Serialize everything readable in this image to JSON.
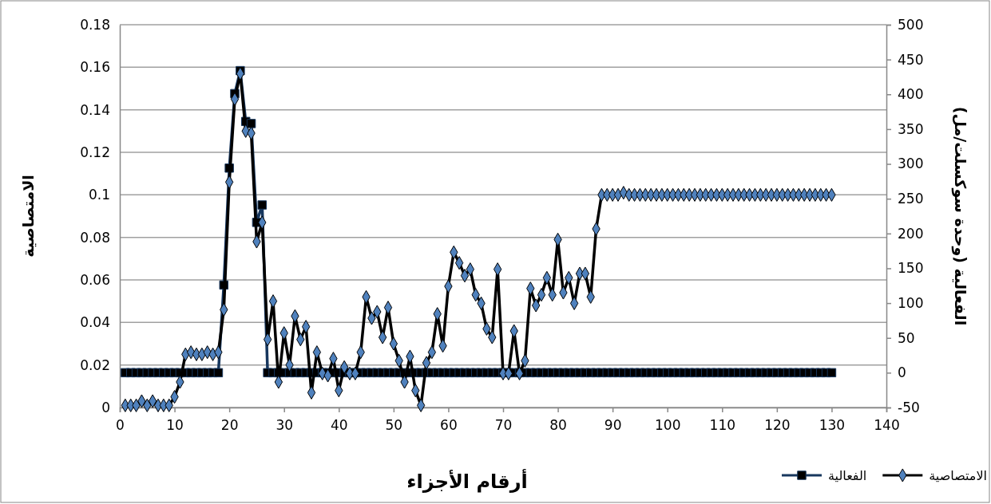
{
  "chart_data": {
    "type": "line",
    "xlabel": "أرقام الأجزاء",
    "ylabel": "الامتصاصية",
    "y2label": "الفعالية  (وحدة سوكسلت/مل)",
    "xlim": [
      0,
      140
    ],
    "xticks": [
      0,
      10,
      20,
      30,
      40,
      50,
      60,
      70,
      80,
      90,
      100,
      110,
      120,
      130,
      140
    ],
    "ylim": [
      0,
      0.18
    ],
    "yticks": [
      0,
      0.02,
      0.04,
      0.06,
      0.08,
      0.1,
      0.12,
      0.14,
      0.16,
      0.18
    ],
    "y2lim": [
      -50,
      500
    ],
    "y2ticks": [
      -50,
      0,
      50,
      100,
      150,
      200,
      250,
      300,
      350,
      400,
      450,
      500
    ],
    "grid": "y",
    "legend": "bottom right",
    "series": [
      {
        "name": "الامتصاصية",
        "color": "#000000",
        "marker": "diamond",
        "x": [
          1,
          2,
          3,
          4,
          5,
          6,
          7,
          8,
          9,
          10,
          11,
          12,
          13,
          14,
          15,
          16,
          17,
          18,
          19,
          20,
          21,
          22,
          23,
          24,
          25,
          26,
          27,
          28,
          29,
          30,
          31,
          32,
          33,
          34,
          35,
          36,
          37,
          38,
          39,
          40,
          41,
          42,
          43,
          44,
          45,
          46,
          47,
          48,
          49,
          50,
          51,
          52,
          53,
          54,
          55,
          56,
          57,
          58,
          59,
          60,
          61,
          62,
          63,
          64,
          65,
          66,
          67,
          68,
          69,
          70,
          71,
          72,
          73,
          74,
          75,
          76,
          77,
          78,
          79,
          80,
          81,
          82,
          83,
          84,
          85,
          86,
          87,
          88,
          89,
          90,
          91,
          92,
          93,
          94,
          95,
          96,
          97,
          98,
          99,
          100,
          101,
          102,
          103,
          104,
          105,
          106,
          107,
          108,
          109,
          110,
          111,
          112,
          113,
          114,
          115,
          116,
          117,
          118,
          119,
          120,
          121,
          122,
          123,
          124,
          125,
          126,
          127,
          128,
          129,
          130
        ],
        "values": [
          0.001,
          0.001,
          0.001,
          0.003,
          0.001,
          0.003,
          0.001,
          0.001,
          0.001,
          0.005,
          0.012,
          0.025,
          0.026,
          0.025,
          0.025,
          0.026,
          0.025,
          0.026,
          0.046,
          0.106,
          0.145,
          0.157,
          0.13,
          0.129,
          0.078,
          0.087,
          0.032,
          0.05,
          0.012,
          0.035,
          0.02,
          0.043,
          0.032,
          0.038,
          0.007,
          0.026,
          0.016,
          0.015,
          0.023,
          0.008,
          0.019,
          0.016,
          0.016,
          0.026,
          0.052,
          0.042,
          0.045,
          0.033,
          0.047,
          0.03,
          0.022,
          0.012,
          0.024,
          0.008,
          0.001,
          0.021,
          0.026,
          0.044,
          0.029,
          0.057,
          0.073,
          0.068,
          0.062,
          0.065,
          0.053,
          0.049,
          0.037,
          0.033,
          0.065,
          0.016,
          0.016,
          0.036,
          0.016,
          0.022,
          0.056,
          0.048,
          0.053,
          0.061,
          0.053,
          0.079,
          0.054,
          0.061,
          0.049,
          0.063,
          0.063,
          0.052,
          0.084,
          0.1,
          0.1,
          0.1,
          0.1,
          0.101,
          0.1,
          0.1,
          0.1,
          0.1,
          0.1,
          0.1,
          0.1,
          0.1,
          0.1,
          0.1,
          0.1,
          0.1,
          0.1,
          0.1,
          0.1,
          0.1,
          0.1,
          0.1,
          0.1,
          0.1,
          0.1,
          0.1,
          0.1,
          0.1,
          0.1,
          0.1,
          0.1,
          0.1,
          0.1,
          0.1,
          0.1,
          0.1,
          0.1,
          0.1,
          0.1,
          0.1,
          0.1,
          0.1
        ]
      },
      {
        "name": "الفعالية",
        "color": "#17375e",
        "marker": "square",
        "axis": "y2",
        "x": [
          1,
          2,
          3,
          4,
          5,
          6,
          7,
          8,
          9,
          10,
          11,
          12,
          13,
          14,
          15,
          16,
          17,
          18,
          19,
          20,
          21,
          22,
          23,
          24,
          25,
          26,
          27,
          28,
          29,
          30,
          31,
          32,
          33,
          34,
          35,
          36,
          37,
          38,
          39,
          40,
          41,
          42,
          43,
          44,
          45,
          46,
          47,
          48,
          49,
          50,
          51,
          52,
          53,
          54,
          55,
          56,
          57,
          58,
          59,
          60,
          61,
          62,
          63,
          64,
          65,
          66,
          67,
          68,
          69,
          70,
          71,
          72,
          73,
          74,
          75,
          76,
          77,
          78,
          79,
          80,
          81,
          82,
          83,
          84,
          85,
          86,
          87,
          88,
          89,
          90,
          91,
          92,
          93,
          94,
          95,
          96,
          97,
          98,
          99,
          100,
          101,
          102,
          103,
          104,
          105,
          106,
          107,
          108,
          109,
          110,
          111,
          112,
          113,
          114,
          115,
          116,
          117,
          118,
          119,
          120,
          121,
          122,
          123,
          124,
          125,
          126,
          127,
          128,
          129,
          130
        ],
        "values": [
          0,
          0,
          0,
          0,
          0,
          0,
          0,
          0,
          0,
          0,
          0,
          0,
          0,
          0,
          0,
          0,
          0,
          0,
          126,
          294,
          401,
          434,
          361,
          358,
          216,
          241,
          0,
          0,
          0,
          0,
          0,
          0,
          0,
          0,
          0,
          0,
          0,
          0,
          0,
          0,
          0,
          0,
          0,
          0,
          0,
          0,
          0,
          0,
          0,
          0,
          0,
          0,
          0,
          0,
          0,
          0,
          0,
          0,
          0,
          0,
          0,
          0,
          0,
          0,
          0,
          0,
          0,
          0,
          0,
          0,
          0,
          0,
          0,
          0,
          0,
          0,
          0,
          0,
          0,
          0,
          0,
          0,
          0,
          0,
          0,
          0,
          0,
          0,
          0,
          0,
          0,
          0,
          0,
          0,
          0,
          0,
          0,
          0,
          0,
          0,
          0,
          0,
          0,
          0,
          0,
          0,
          0,
          0,
          0,
          0,
          0,
          0,
          0,
          0,
          0,
          0,
          0,
          0,
          0,
          0,
          0,
          0,
          0,
          0,
          0,
          0,
          0,
          0,
          0,
          0
        ]
      }
    ]
  }
}
